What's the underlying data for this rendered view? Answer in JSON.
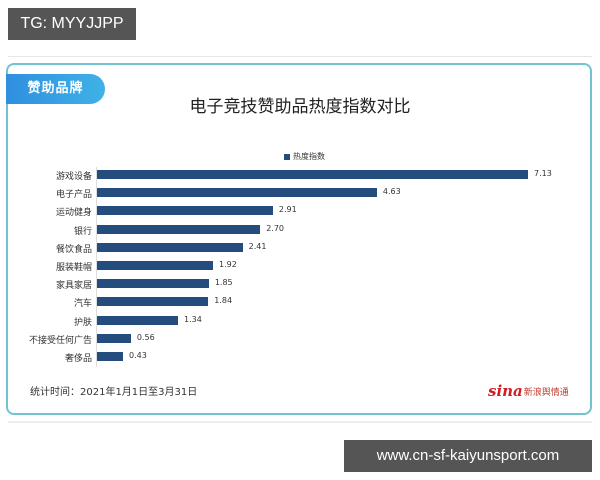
{
  "watermark_top": "TG: MYYJJPP",
  "watermark_bottom": "www.cn-sf-kaiyunsport.com",
  "badge": "赞助品牌",
  "footer_note": "统计时间：2021年1月1日至3月31日",
  "logo": {
    "brand": "sina",
    "subtitle": "新浪舆情通"
  },
  "colors": {
    "bar": "#244c7d",
    "card_border": "#72c3d1",
    "badge_start": "#2f8fe0",
    "badge_end": "#3fb2e6"
  },
  "chart_data": {
    "type": "bar",
    "orientation": "horizontal",
    "title": "电子竞技赞助品热度指数对比",
    "legend": [
      "热度指数"
    ],
    "legend_position": "top",
    "categories": [
      "游戏设备",
      "电子产品",
      "运动健身",
      "银行",
      "餐饮食品",
      "服装鞋帽",
      "家具家居",
      "汽车",
      "护肤",
      "不接受任何广告",
      "奢侈品"
    ],
    "values": [
      7.13,
      4.63,
      2.91,
      2.7,
      2.41,
      1.92,
      1.85,
      1.84,
      1.34,
      0.56,
      0.43
    ],
    "value_labels": [
      "7.13",
      "4.63",
      "2.91",
      "2.70",
      "2.41",
      "1.92",
      "1.85",
      "1.84",
      "1.34",
      "0.56",
      "0.43"
    ],
    "xlabel": "",
    "ylabel": "",
    "grid": false
  }
}
